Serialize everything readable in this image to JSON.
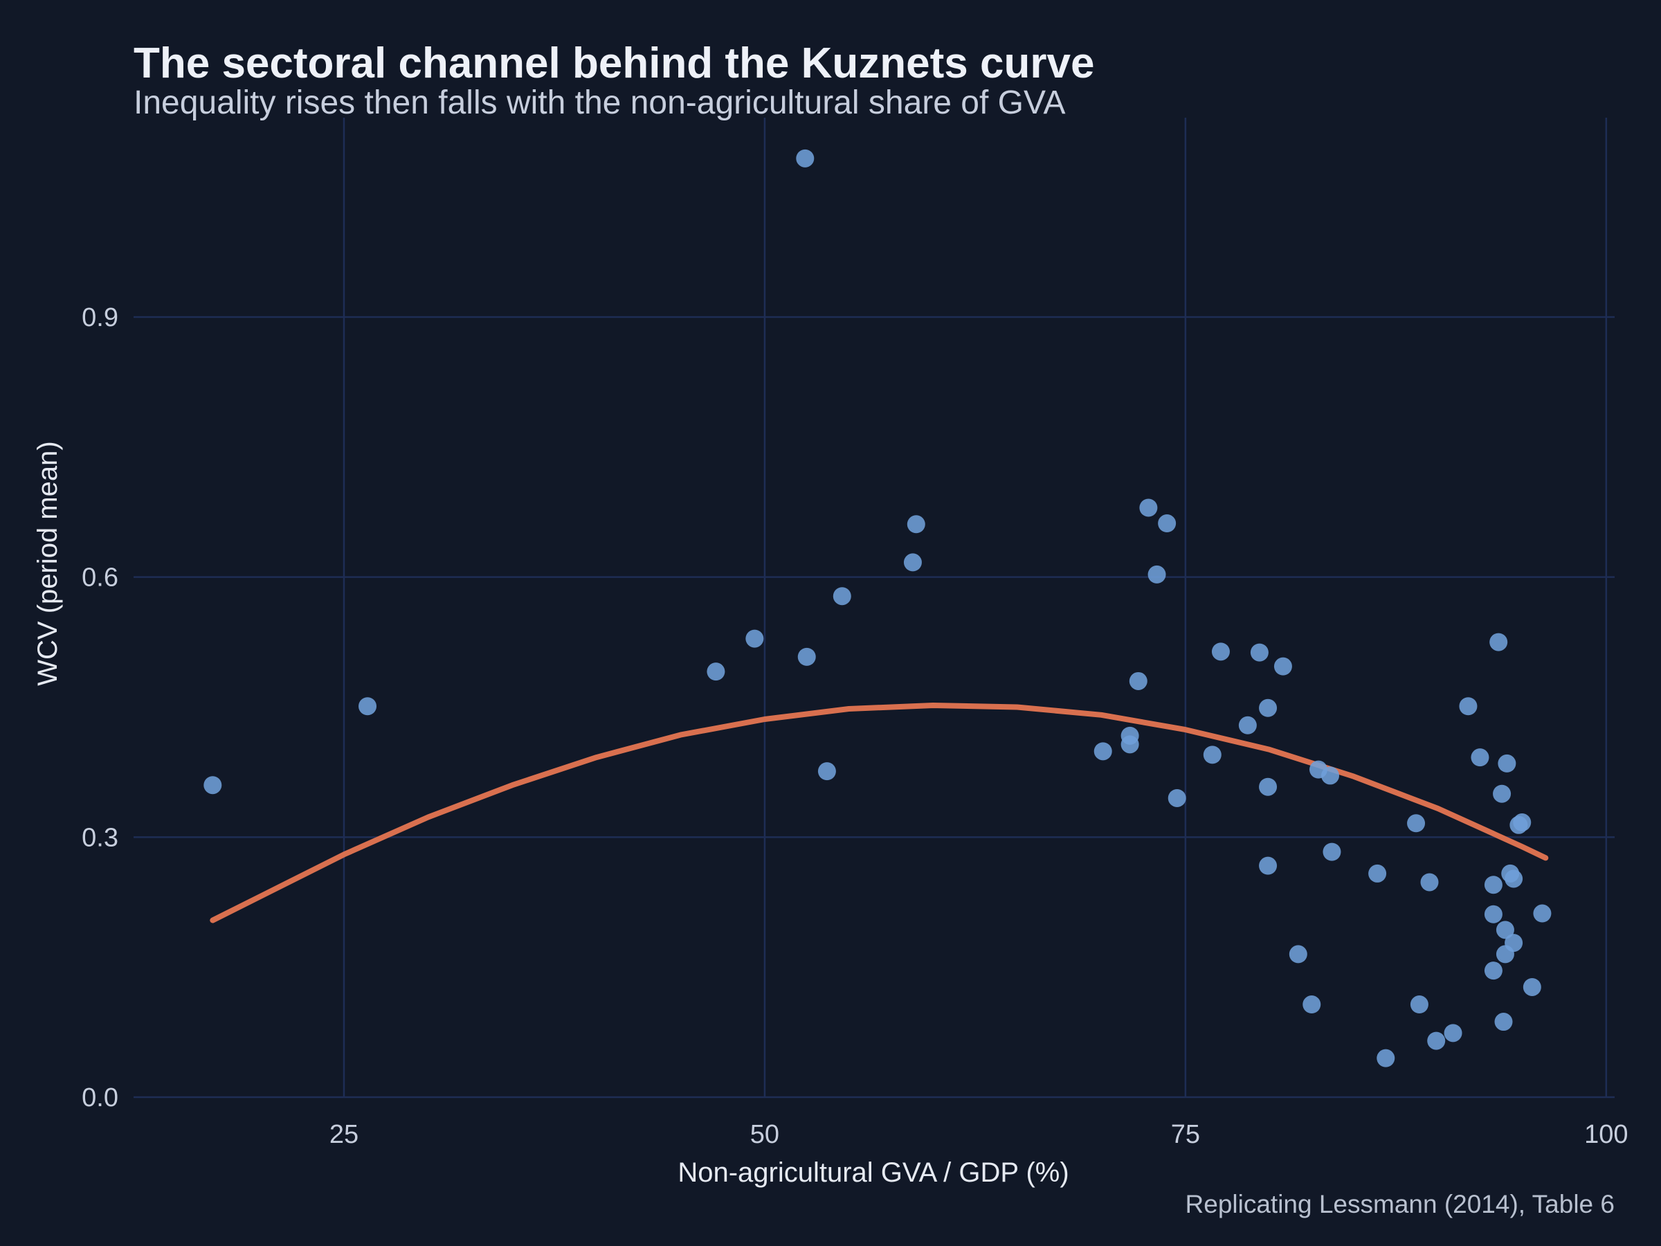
{
  "chart_data": {
    "type": "scatter",
    "title": "The sectoral channel behind the Kuznets curve",
    "subtitle": "Inequality rises then falls with the non-agricultural share of GVA",
    "xlabel": "Non-agricultural GVA / GDP (%)",
    "ylabel": "WCV (period mean)",
    "caption": "Replicating Lessmann (2014), Table 6",
    "xlim": [
      12.5,
      100.5
    ],
    "ylim": [
      0.0,
      1.13
    ],
    "xticks": [
      25,
      50,
      75,
      100
    ],
    "yticks": [
      0.0,
      0.3,
      0.6,
      0.9
    ],
    "xtick_labels": [
      "25",
      "50",
      "75",
      "100"
    ],
    "ytick_labels": [
      "0.0",
      "0.3",
      "0.6",
      "0.9"
    ],
    "grid": true,
    "legend": "none",
    "colors": {
      "background": "#111827",
      "points": "#6f9fda",
      "fit": "#d9704f",
      "grid": "#1e2d55"
    },
    "points": [
      {
        "x": 17.2,
        "y": 0.36
      },
      {
        "x": 26.4,
        "y": 0.451
      },
      {
        "x": 47.1,
        "y": 0.491
      },
      {
        "x": 49.4,
        "y": 0.529
      },
      {
        "x": 52.4,
        "y": 1.083
      },
      {
        "x": 52.5,
        "y": 0.508
      },
      {
        "x": 53.7,
        "y": 0.376
      },
      {
        "x": 54.6,
        "y": 0.578
      },
      {
        "x": 58.8,
        "y": 0.617
      },
      {
        "x": 59.0,
        "y": 0.661
      },
      {
        "x": 70.1,
        "y": 0.399
      },
      {
        "x": 71.7,
        "y": 0.417
      },
      {
        "x": 71.7,
        "y": 0.407
      },
      {
        "x": 72.2,
        "y": 0.48
      },
      {
        "x": 72.8,
        "y": 0.68
      },
      {
        "x": 73.3,
        "y": 0.603
      },
      {
        "x": 73.9,
        "y": 0.662
      },
      {
        "x": 74.5,
        "y": 0.345
      },
      {
        "x": 76.6,
        "y": 0.395
      },
      {
        "x": 77.1,
        "y": 0.514
      },
      {
        "x": 78.7,
        "y": 0.429
      },
      {
        "x": 79.4,
        "y": 0.513
      },
      {
        "x": 79.9,
        "y": 0.449
      },
      {
        "x": 79.9,
        "y": 0.358
      },
      {
        "x": 79.9,
        "y": 0.267
      },
      {
        "x": 80.8,
        "y": 0.497
      },
      {
        "x": 81.7,
        "y": 0.165
      },
      {
        "x": 82.5,
        "y": 0.107
      },
      {
        "x": 82.9,
        "y": 0.378
      },
      {
        "x": 83.6,
        "y": 0.371
      },
      {
        "x": 83.7,
        "y": 0.283
      },
      {
        "x": 86.4,
        "y": 0.258
      },
      {
        "x": 86.9,
        "y": 0.045
      },
      {
        "x": 88.7,
        "y": 0.316
      },
      {
        "x": 88.9,
        "y": 0.107
      },
      {
        "x": 89.5,
        "y": 0.248
      },
      {
        "x": 89.9,
        "y": 0.065
      },
      {
        "x": 90.9,
        "y": 0.074
      },
      {
        "x": 91.8,
        "y": 0.451
      },
      {
        "x": 92.5,
        "y": 0.392
      },
      {
        "x": 93.3,
        "y": 0.245
      },
      {
        "x": 93.3,
        "y": 0.211
      },
      {
        "x": 93.3,
        "y": 0.146
      },
      {
        "x": 93.6,
        "y": 0.525
      },
      {
        "x": 93.8,
        "y": 0.35
      },
      {
        "x": 93.9,
        "y": 0.087
      },
      {
        "x": 94.0,
        "y": 0.193
      },
      {
        "x": 94.0,
        "y": 0.165
      },
      {
        "x": 94.1,
        "y": 0.385
      },
      {
        "x": 94.3,
        "y": 0.258
      },
      {
        "x": 94.5,
        "y": 0.252
      },
      {
        "x": 94.5,
        "y": 0.178
      },
      {
        "x": 94.8,
        "y": 0.314
      },
      {
        "x": 95.0,
        "y": 0.317
      },
      {
        "x": 95.6,
        "y": 0.127
      },
      {
        "x": 96.2,
        "y": 0.212
      }
    ],
    "fit": {
      "type": "quadratic",
      "x": [
        17.2,
        25,
        30,
        35,
        40,
        45,
        50,
        55,
        60,
        65,
        70,
        75,
        80,
        85,
        90,
        95,
        96.4
      ],
      "y": [
        0.204,
        0.28,
        0.323,
        0.36,
        0.392,
        0.418,
        0.436,
        0.448,
        0.452,
        0.45,
        0.441,
        0.424,
        0.401,
        0.37,
        0.333,
        0.289,
        0.276
      ]
    }
  }
}
